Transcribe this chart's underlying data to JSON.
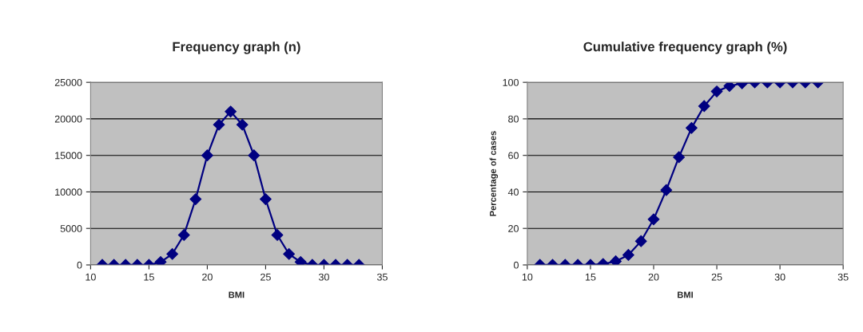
{
  "chart_data": [
    {
      "type": "line",
      "title": "Frequency graph (n)",
      "xlabel": "BMI",
      "x": [
        11,
        12,
        13,
        14,
        15,
        16,
        17,
        18,
        19,
        20,
        21,
        22,
        23,
        24,
        25,
        26,
        27,
        28,
        29,
        30,
        31,
        32,
        33
      ],
      "series": [
        {
          "color": "#000080",
          "values": [
            0,
            0,
            0,
            0,
            0,
            400,
            1500,
            4100,
            9000,
            15000,
            19200,
            21000,
            19200,
            15000,
            9000,
            4100,
            1500,
            400,
            0,
            0,
            0,
            0,
            0
          ]
        }
      ],
      "xlim": [
        10,
        35
      ],
      "xticks": [
        10,
        15,
        20,
        25,
        30,
        35
      ],
      "ylim": [
        0,
        25000
      ],
      "yticks": [
        0,
        5000,
        10000,
        15000,
        20000,
        25000
      ],
      "grid": "y",
      "marker": "diamond",
      "line_style": "solid"
    },
    {
      "type": "line",
      "title": "Cumulative frequency graph (%)",
      "xlabel": "BMI",
      "ylabel": "Percentage of cases",
      "x": [
        11,
        12,
        13,
        14,
        15,
        16,
        17,
        18,
        19,
        20,
        21,
        22,
        23,
        24,
        25,
        26,
        27,
        28,
        29,
        30,
        31,
        32,
        33
      ],
      "series": [
        {
          "color": "#000080",
          "values": [
            0,
            0,
            0,
            0,
            0,
            0.5,
            2,
            5.5,
            13,
            25,
            41,
            59,
            75,
            87,
            95,
            98,
            99.5,
            100,
            100,
            100,
            100,
            100,
            100
          ]
        }
      ],
      "xlim": [
        10,
        35
      ],
      "xticks": [
        10,
        15,
        20,
        25,
        30,
        35
      ],
      "ylim": [
        0,
        100
      ],
      "yticks": [
        0,
        20,
        40,
        60,
        80,
        100
      ],
      "grid": "y",
      "marker": "diamond",
      "line_style": "solid"
    }
  ]
}
